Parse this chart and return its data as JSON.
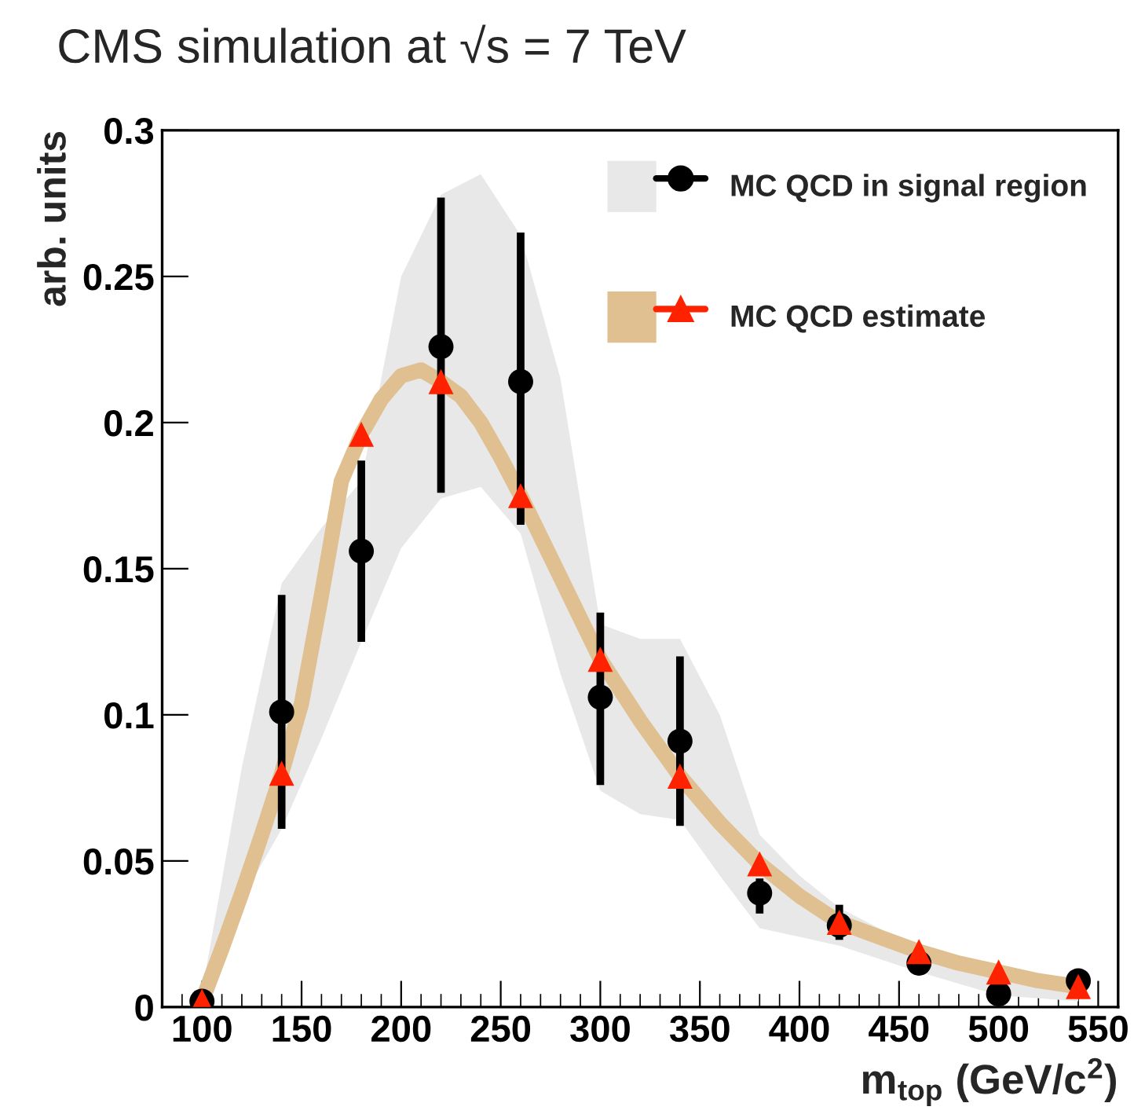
{
  "chart_data": {
    "type": "scatter",
    "title": "CMS simulation at √s = 7 TeV",
    "xlabel": "m$_{top}$ (GeV/c$^{2}$)",
    "ylabel": "arb. units",
    "xlim": [
      80,
      560
    ],
    "ylim": [
      0,
      0.3
    ],
    "xticks": [
      100,
      150,
      200,
      250,
      300,
      350,
      400,
      450,
      500,
      550
    ],
    "yticks": [
      0,
      0.05,
      0.1,
      0.15,
      0.2,
      0.25,
      0.3
    ],
    "grid": false,
    "legend": "top right",
    "series": [
      {
        "name": "MC QCD in signal region",
        "marker": "circle",
        "color": "#000000",
        "x": [
          100,
          120,
          140,
          160,
          180,
          200,
          220,
          240,
          260,
          280,
          300,
          320,
          340,
          360,
          380,
          400,
          420,
          460,
          500,
          540
        ],
        "values": [
          0.002,
          null,
          0.101,
          null,
          0.156,
          null,
          0.226,
          null,
          0.214,
          null,
          0.106,
          null,
          0.091,
          null,
          0.039,
          null,
          0.028,
          0.015,
          0.0045,
          0.009
        ],
        "errors": [
          null,
          null,
          [
            0.061,
            0.141
          ],
          null,
          [
            0.125,
            0.187
          ],
          null,
          [
            0.176,
            0.277
          ],
          null,
          [
            0.165,
            0.265
          ],
          null,
          [
            0.076,
            0.135
          ],
          null,
          [
            0.062,
            0.12
          ],
          null,
          [
            0.032,
            0.044
          ],
          null,
          [
            0.023,
            0.035
          ],
          null,
          null,
          null
        ],
        "lower": [
          0.0,
          0.037,
          0.061,
          0.092,
          0.125,
          0.157,
          0.174,
          0.178,
          0.162,
          0.114,
          0.074,
          0.066,
          0.064,
          0.045,
          0.027,
          0.024,
          0.021,
          0.012,
          0.004,
          0.002
        ],
        "upper": [
          0.005,
          0.082,
          0.145,
          0.164,
          0.18,
          0.25,
          0.278,
          0.285,
          0.264,
          0.215,
          0.131,
          0.126,
          0.126,
          0.1,
          0.059,
          0.045,
          0.034,
          0.02,
          0.012,
          0.01
        ]
      },
      {
        "type": "line",
        "color": "#e0c090",
        "x": [
          100,
          110,
          120,
          130,
          140,
          150,
          160,
          170,
          180,
          190,
          200,
          210,
          220,
          230,
          240,
          250,
          260,
          280,
          300,
          320,
          340,
          360,
          380,
          400,
          420,
          440,
          460,
          480,
          500,
          520,
          540
        ],
        "values": [
          0.002,
          0.02,
          0.039,
          0.059,
          0.08,
          0.104,
          0.141,
          0.18,
          0.196,
          0.208,
          0.216,
          0.218,
          0.214,
          0.209,
          0.2,
          0.188,
          0.175,
          0.147,
          0.119,
          0.098,
          0.079,
          0.063,
          0.049,
          0.038,
          0.029,
          0.024,
          0.019,
          0.015,
          0.012,
          0.009,
          0.007
        ]
      },
      {
        "name": "MC QCD estimate",
        "marker": "triangle",
        "color": "#ff2200",
        "x": [
          100,
          140,
          180,
          220,
          260,
          300,
          340,
          380,
          420,
          460,
          500,
          540
        ],
        "values": [
          0.002,
          0.08,
          0.196,
          0.214,
          0.175,
          0.119,
          0.079,
          0.049,
          0.029,
          0.019,
          0.012,
          0.007
        ]
      }
    ]
  }
}
